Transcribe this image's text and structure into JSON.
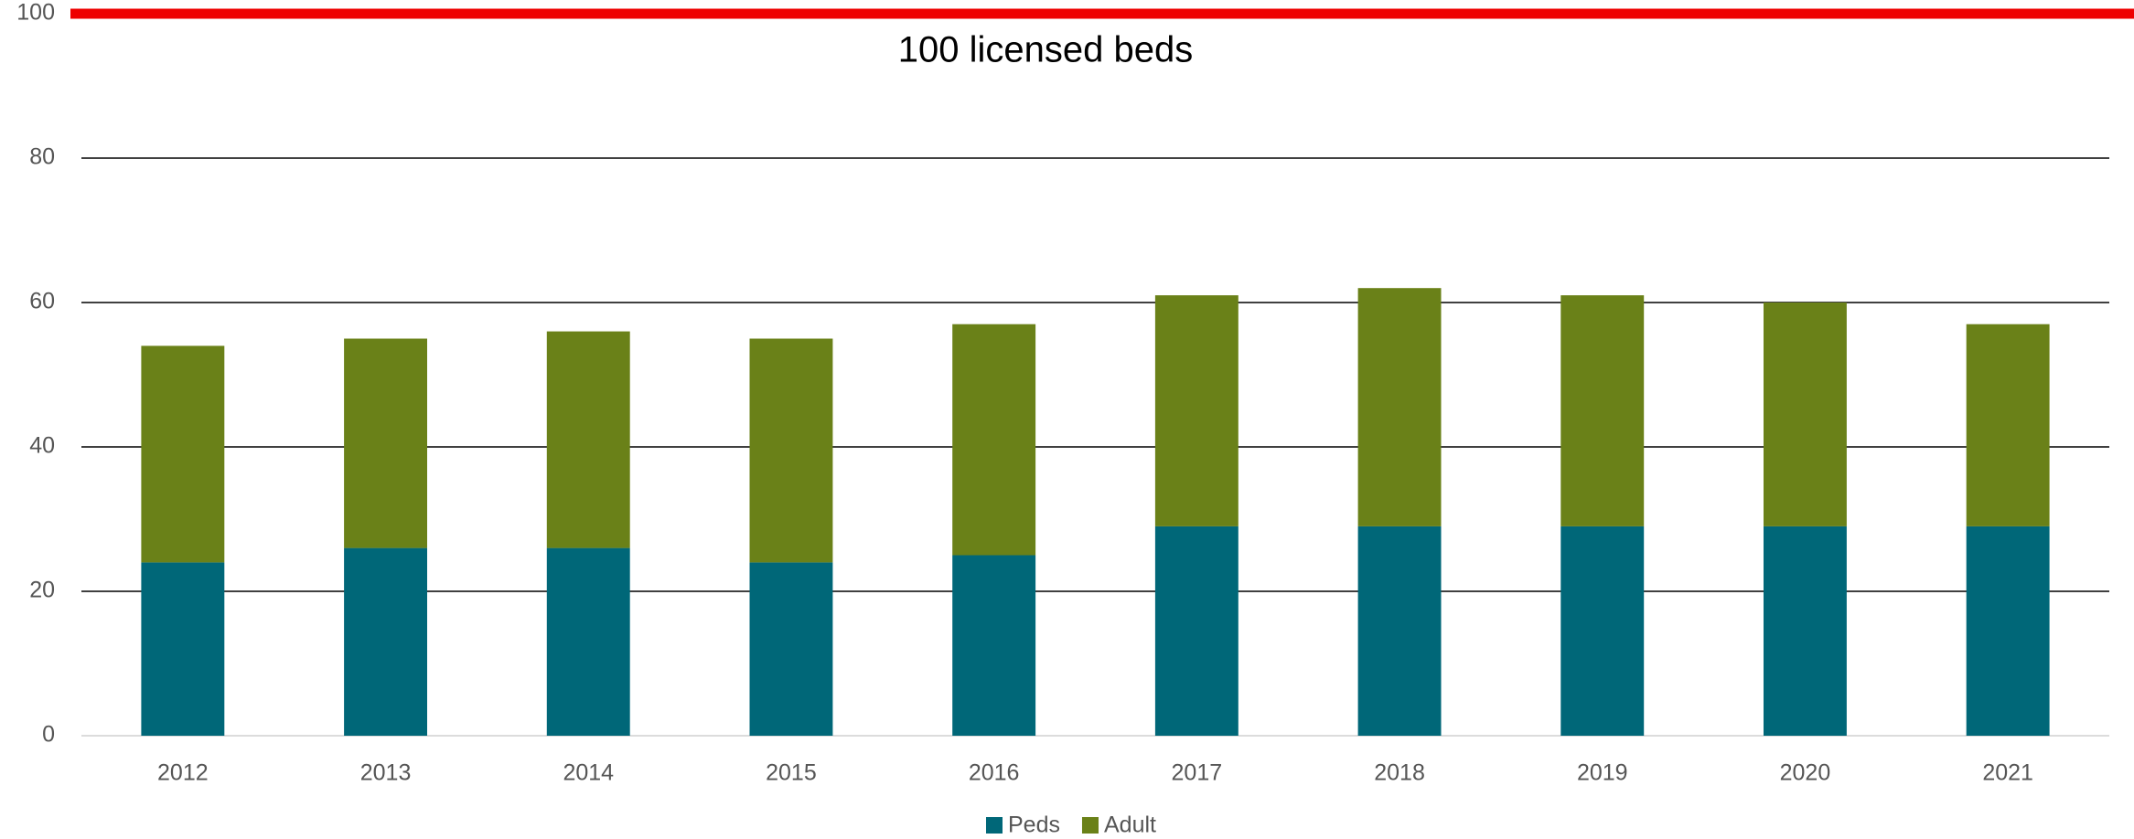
{
  "chart_data": {
    "type": "stacked_bar",
    "categories": [
      "2012",
      "2013",
      "2014",
      "2015",
      "2016",
      "2017",
      "2018",
      "2019",
      "2020",
      "2021"
    ],
    "series": [
      {
        "name": "Peds",
        "color": "#006778",
        "values": [
          24,
          26,
          26,
          24,
          25,
          29,
          29,
          29,
          29,
          29
        ]
      },
      {
        "name": "Adult",
        "color": "#6a8118",
        "values": [
          30,
          29,
          30,
          31,
          32,
          32,
          33,
          32,
          31,
          28
        ]
      }
    ],
    "reference_line": {
      "value": 100,
      "label": "100 licensed beds",
      "color": "#ee0000"
    },
    "ylim": [
      0,
      100
    ],
    "yticks": [
      0,
      20,
      40,
      60,
      80,
      100
    ],
    "grid": true,
    "legend": "bottom"
  }
}
